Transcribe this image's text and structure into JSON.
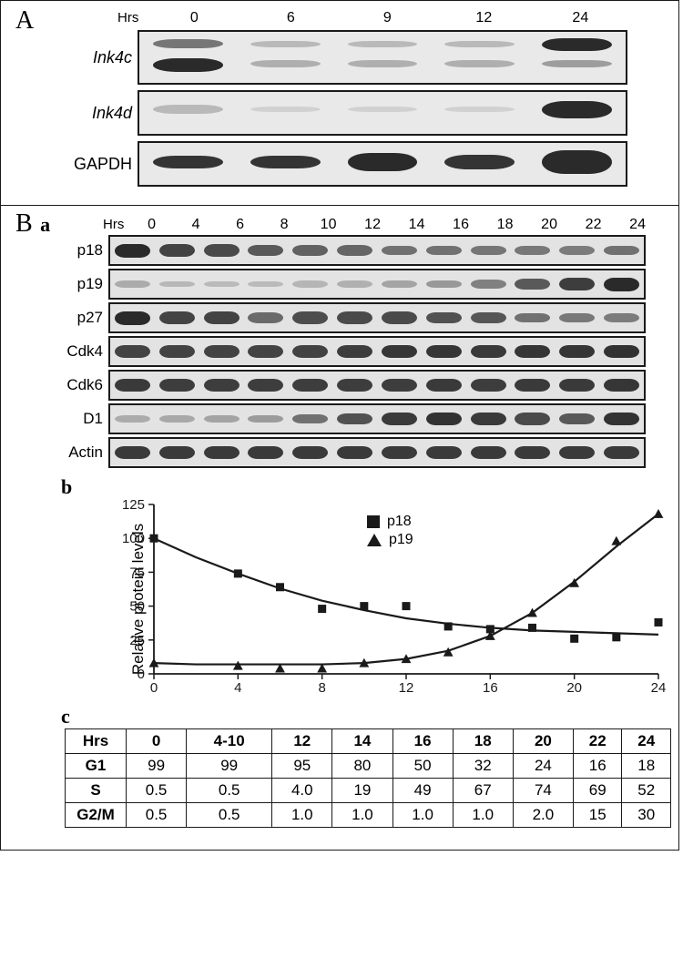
{
  "panelA": {
    "letter": "A",
    "hrs_label": "Hrs",
    "hours": [
      "0",
      "6",
      "9",
      "12",
      "24"
    ],
    "rows": [
      {
        "label": "Ink4c",
        "italic": true,
        "tall": true,
        "bands": [
          [
            {
              "top": 15,
              "h": 18,
              "op": 0.6
            },
            {
              "top": 52,
              "h": 26,
              "op": 1.0
            }
          ],
          [
            {
              "top": 18,
              "h": 12,
              "op": 0.25
            },
            {
              "top": 55,
              "h": 14,
              "op": 0.3
            }
          ],
          [
            {
              "top": 18,
              "h": 12,
              "op": 0.25
            },
            {
              "top": 55,
              "h": 14,
              "op": 0.3
            }
          ],
          [
            {
              "top": 18,
              "h": 12,
              "op": 0.25
            },
            {
              "top": 55,
              "h": 14,
              "op": 0.3
            }
          ],
          [
            {
              "top": 12,
              "h": 26,
              "op": 1.0
            },
            {
              "top": 55,
              "h": 14,
              "op": 0.4
            }
          ]
        ]
      },
      {
        "label": "Ink4d",
        "italic": true,
        "tall": false,
        "bands": [
          [
            {
              "top": 30,
              "h": 22,
              "op": 0.25
            }
          ],
          [
            {
              "top": 34,
              "h": 14,
              "op": 0.12
            }
          ],
          [
            {
              "top": 34,
              "h": 14,
              "op": 0.12
            }
          ],
          [
            {
              "top": 34,
              "h": 14,
              "op": 0.12
            }
          ],
          [
            {
              "top": 22,
              "h": 40,
              "op": 1.0
            }
          ]
        ]
      },
      {
        "label": "GAPDH",
        "italic": false,
        "tall": false,
        "bands": [
          [
            {
              "top": 30,
              "h": 30,
              "op": 0.95
            }
          ],
          [
            {
              "top": 30,
              "h": 30,
              "op": 0.95
            }
          ],
          [
            {
              "top": 24,
              "h": 44,
              "op": 1.0
            }
          ],
          [
            {
              "top": 28,
              "h": 34,
              "op": 0.95
            }
          ],
          [
            {
              "top": 18,
              "h": 56,
              "op": 1.0
            }
          ]
        ]
      }
    ]
  },
  "panelB": {
    "letter": "B",
    "a": {
      "sub": "a",
      "hrs_label": "Hrs",
      "hours": [
        "0",
        "4",
        "6",
        "8",
        "10",
        "12",
        "14",
        "16",
        "18",
        "20",
        "22",
        "24"
      ],
      "rows": [
        {
          "label": "p18",
          "intensity": [
            1.0,
            0.85,
            0.8,
            0.7,
            0.65,
            0.62,
            0.55,
            0.55,
            0.52,
            0.5,
            0.48,
            0.55
          ]
        },
        {
          "label": "p19",
          "intensity": [
            0.18,
            0.1,
            0.08,
            0.08,
            0.12,
            0.15,
            0.22,
            0.3,
            0.45,
            0.7,
            0.88,
            1.0
          ]
        },
        {
          "label": "p27",
          "intensity": [
            1.0,
            0.85,
            0.85,
            0.6,
            0.78,
            0.8,
            0.8,
            0.75,
            0.72,
            0.55,
            0.5,
            0.48
          ]
        },
        {
          "label": "Cdk4",
          "intensity": [
            0.85,
            0.85,
            0.85,
            0.85,
            0.85,
            0.88,
            0.92,
            0.92,
            0.9,
            0.92,
            0.92,
            0.95
          ]
        },
        {
          "label": "Cdk6",
          "intensity": [
            0.9,
            0.88,
            0.88,
            0.88,
            0.88,
            0.88,
            0.88,
            0.9,
            0.88,
            0.9,
            0.9,
            0.92
          ]
        },
        {
          "label": "D1",
          "intensity": [
            0.18,
            0.2,
            0.22,
            0.28,
            0.55,
            0.75,
            0.9,
            0.95,
            0.9,
            0.8,
            0.7,
            0.95
          ]
        },
        {
          "label": "Actin",
          "intensity": [
            0.9,
            0.9,
            0.9,
            0.9,
            0.9,
            0.9,
            0.9,
            0.9,
            0.9,
            0.9,
            0.9,
            0.9
          ]
        }
      ]
    },
    "b": {
      "sub": "b",
      "ylabel": "Relative protein levels",
      "ylim": [
        0,
        125
      ],
      "ytick_step": 25,
      "xlim": [
        0,
        24
      ],
      "xtick_step": 4,
      "series": [
        {
          "name": "p18",
          "marker": "square",
          "x": [
            0,
            4,
            6,
            8,
            10,
            12,
            14,
            16,
            18,
            20,
            22,
            24
          ],
          "y": [
            100,
            74,
            64,
            48,
            50,
            50,
            35,
            33,
            34,
            26,
            27,
            38
          ]
        },
        {
          "name": "p19",
          "marker": "triangle",
          "x": [
            0,
            4,
            6,
            8,
            10,
            12,
            14,
            16,
            18,
            20,
            22,
            24
          ],
          "y": [
            8,
            6,
            4,
            4,
            8,
            11,
            16,
            28,
            45,
            67,
            98,
            118
          ]
        }
      ],
      "curves": [
        {
          "name": "p18_fit",
          "x": [
            0,
            2,
            4,
            6,
            8,
            10,
            12,
            14,
            16,
            18,
            20,
            22,
            24
          ],
          "y": [
            100,
            86,
            74,
            63,
            54,
            47,
            41,
            37,
            34,
            32,
            31,
            30,
            29
          ]
        },
        {
          "name": "p19_fit",
          "x": [
            0,
            2,
            4,
            6,
            8,
            10,
            12,
            14,
            16,
            18,
            20,
            22,
            24
          ],
          "y": [
            8,
            7,
            7,
            7,
            7,
            8,
            11,
            17,
            28,
            45,
            68,
            94,
            118
          ]
        }
      ],
      "marker_color": "#1a1a1a",
      "line_color": "#1a1a1a",
      "line_width": 2.2,
      "marker_size": 9,
      "background": "#ffffff",
      "axis_color": "#1a1a1a",
      "tick_fontsize": 15,
      "label_fontsize": 17
    },
    "c": {
      "sub": "c",
      "columns": [
        "Hrs",
        "0",
        "4-10",
        "12",
        "14",
        "16",
        "18",
        "20",
        "22",
        "24"
      ],
      "rows": [
        [
          "G1",
          "99",
          "99",
          "95",
          "80",
          "50",
          "32",
          "24",
          "16",
          "18"
        ],
        [
          "S",
          "0.5",
          "0.5",
          "4.0",
          "19",
          "49",
          "67",
          "74",
          "69",
          "52"
        ],
        [
          "G2/M",
          "0.5",
          "0.5",
          "1.0",
          "1.0",
          "1.0",
          "1.0",
          "2.0",
          "15",
          "30"
        ]
      ]
    }
  }
}
